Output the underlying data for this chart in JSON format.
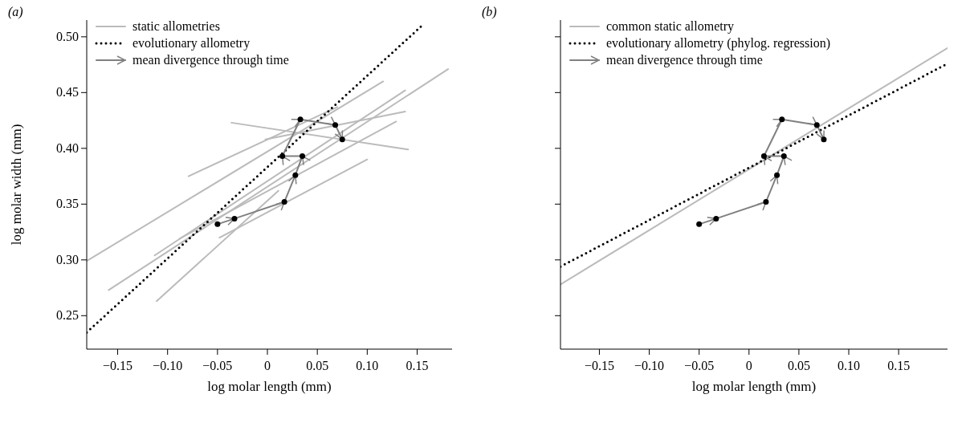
{
  "chart_data": [
    {
      "type": "line",
      "title": "(a)",
      "xlabel": "log molar length (mm)",
      "ylabel": "log molar width (mm)",
      "xlim": [
        -0.181,
        0.185
      ],
      "ylim": [
        0.22,
        0.515
      ],
      "xticks": [
        {
          "value": -0.15,
          "label": "−0.15"
        },
        {
          "value": -0.1,
          "label": "−0.10"
        },
        {
          "value": -0.05,
          "label": "−0.05"
        },
        0,
        0.05,
        {
          "value": 0.1,
          "label": "0.10"
        },
        0.15
      ],
      "yticks": [
        0.25,
        {
          "value": 0.3,
          "label": "0.30"
        },
        0.35,
        {
          "value": 0.4,
          "label": "0.40"
        },
        0.45,
        {
          "value": 0.5,
          "label": "0.50"
        }
      ],
      "legend": "top left",
      "grid": false,
      "series": [
        {
          "name": "static allometries",
          "color": "#bbbbbb",
          "line_style": "solid",
          "x": [
            -0.181,
            0.116
          ],
          "values": [
            0.299,
            0.46
          ]
        },
        {
          "color": "#bbbbbb",
          "line_style": "solid",
          "x": [
            -0.159,
            0.181
          ],
          "values": [
            0.273,
            0.471
          ]
        },
        {
          "color": "#bbbbbb",
          "line_style": "solid",
          "x": [
            -0.113,
            0.138
          ],
          "values": [
            0.304,
            0.452
          ]
        },
        {
          "color": "#bbbbbb",
          "line_style": "solid",
          "x": [
            -0.111,
            0.011
          ],
          "values": [
            0.263,
            0.362
          ]
        },
        {
          "color": "#bbbbbb",
          "line_style": "solid",
          "x": [
            -0.088,
            0.129
          ],
          "values": [
            0.319,
            0.424
          ]
        },
        {
          "color": "#bbbbbb",
          "line_style": "solid",
          "x": [
            -0.079,
            0.07
          ],
          "values": [
            0.375,
            0.437
          ]
        },
        {
          "color": "#bbbbbb",
          "line_style": "solid",
          "x": [
            -0.036,
            0.141
          ],
          "values": [
            0.423,
            0.399
          ]
        },
        {
          "color": "#bbbbbb",
          "line_style": "solid",
          "x": [
            -0.002,
            0.138
          ],
          "values": [
            0.408,
            0.433
          ]
        },
        {
          "color": "#bbbbbb",
          "line_style": "solid",
          "x": [
            -0.048,
            0.1
          ],
          "values": [
            0.32,
            0.39
          ]
        },
        {
          "name": "evolutionary allometry",
          "color": "#000000",
          "line_style": "dotted",
          "x": [
            -0.181,
            0.156
          ],
          "values": [
            0.235,
            0.511
          ]
        },
        {
          "name": "mean divergence through time",
          "color": "#808080",
          "line_style": "solid",
          "x": [
            -0.05,
            -0.033,
            0.017,
            0.028,
            0.035,
            0.015,
            0.033,
            0.068,
            0.075
          ],
          "values": [
            0.332,
            0.337,
            0.352,
            0.376,
            0.393,
            0.393,
            0.426,
            0.421,
            0.408
          ]
        },
        {
          "type": "scatter",
          "color": "#000000",
          "marker": "circle",
          "x": [
            -0.05,
            -0.033,
            0.017,
            0.028,
            0.035,
            0.015,
            0.033,
            0.068,
            0.075
          ],
          "values": [
            0.332,
            0.337,
            0.352,
            0.376,
            0.393,
            0.393,
            0.426,
            0.421,
            0.408
          ]
        }
      ]
    },
    {
      "type": "line",
      "title": "(b)",
      "xlabel": "log molar length (mm)",
      "xlim": [
        -0.189,
        0.199
      ],
      "ylim": [
        0.22,
        0.515
      ],
      "xticks": [
        {
          "value": -0.15,
          "label": "−0.15"
        },
        {
          "value": -0.1,
          "label": "−0.10"
        },
        {
          "value": -0.05,
          "label": "−0.05"
        },
        0,
        0.05,
        {
          "value": 0.1,
          "label": "0.10"
        },
        0.15
      ],
      "yticks": [
        0.25,
        0.3,
        0.35,
        0.4,
        0.45,
        0.5
      ],
      "tick_labels": "x",
      "legend": "top left",
      "grid": false,
      "series": [
        {
          "name": "common static allometry",
          "color": "#bbbbbb",
          "line_style": "solid",
          "x": [
            -0.189,
            0.199
          ],
          "values": [
            0.278,
            0.49
          ]
        },
        {
          "name": "evolutionary allometry (phylog. regression)",
          "color": "#000000",
          "line_style": "dotted",
          "x": [
            -0.189,
            0.199
          ],
          "values": [
            0.294,
            0.476
          ]
        },
        {
          "name": "mean divergence through time",
          "color": "#808080",
          "line_style": "solid",
          "x": [
            -0.05,
            -0.033,
            0.017,
            0.028,
            0.035,
            0.015,
            0.033,
            0.068,
            0.075
          ],
          "values": [
            0.332,
            0.337,
            0.352,
            0.376,
            0.393,
            0.393,
            0.426,
            0.421,
            0.408
          ]
        },
        {
          "type": "scatter",
          "color": "#000000",
          "marker": "circle",
          "x": [
            -0.05,
            -0.033,
            0.017,
            0.028,
            0.035,
            0.015,
            0.033,
            0.068,
            0.075
          ],
          "values": [
            0.332,
            0.337,
            0.352,
            0.376,
            0.393,
            0.393,
            0.426,
            0.421,
            0.408
          ]
        }
      ]
    }
  ]
}
